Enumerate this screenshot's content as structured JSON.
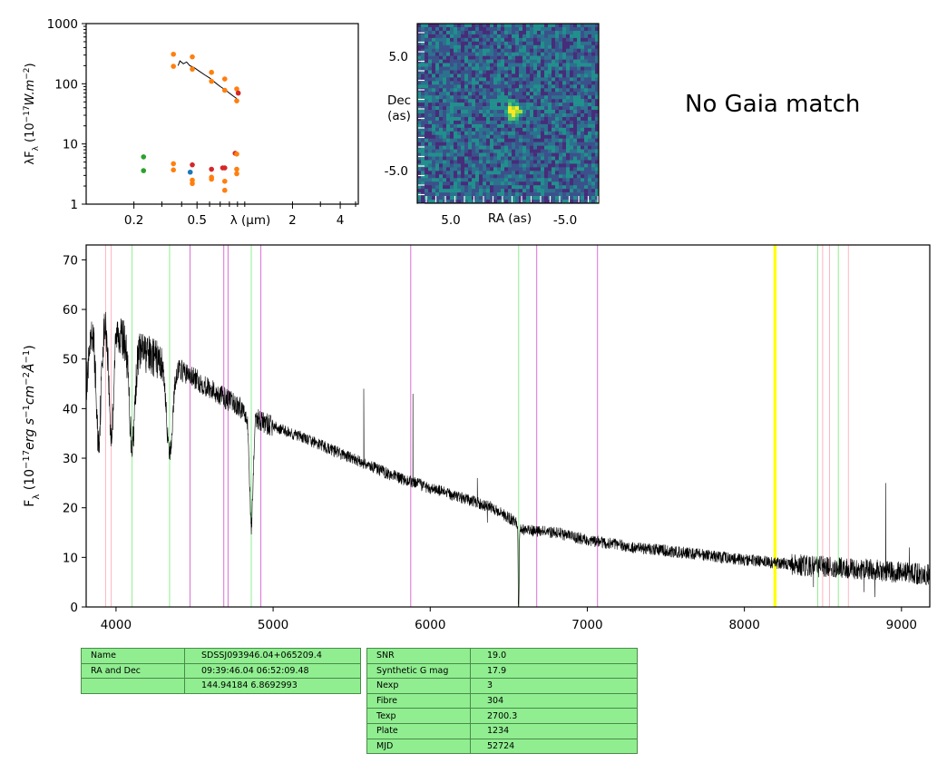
{
  "gaia_text": "No Gaia match",
  "colors": {
    "ink": "#000000",
    "sdss_orange": "#ff7f0e",
    "green": "#2ca02c",
    "red": "#d62728",
    "blue": "#1f77b4",
    "table_bg": "#90ee90"
  },
  "chart_data": [
    {
      "type": "scatter",
      "panel": "sed",
      "ylabel": "λF_λ (10^-17 W.m^-2)",
      "xlabel": "λ (μm)",
      "xscale": "log",
      "yscale": "log",
      "xlim": [
        0.1,
        5.2
      ],
      "ylim": [
        1,
        1000
      ],
      "xticks": [
        0.2,
        0.5,
        2,
        4
      ],
      "xtick_labels": [
        "0.2",
        "0.5",
        "2",
        "4"
      ],
      "yticks": [
        1,
        10,
        100,
        1000
      ],
      "ytick_labels": [
        "1",
        "10",
        "100",
        "1000"
      ],
      "points": [
        {
          "x": 0.23,
          "y": 6.1,
          "c": "green"
        },
        {
          "x": 0.23,
          "y": 3.6,
          "c": "green"
        },
        {
          "x": 0.355,
          "y": 310,
          "c": "orange"
        },
        {
          "x": 0.355,
          "y": 195,
          "c": "orange"
        },
        {
          "x": 0.355,
          "y": 4.7,
          "c": "orange"
        },
        {
          "x": 0.355,
          "y": 3.7,
          "c": "orange"
        },
        {
          "x": 0.467,
          "y": 280,
          "c": "orange"
        },
        {
          "x": 0.467,
          "y": 175,
          "c": "orange"
        },
        {
          "x": 0.453,
          "y": 3.4,
          "c": "blue"
        },
        {
          "x": 0.467,
          "y": 4.5,
          "c": "red"
        },
        {
          "x": 0.467,
          "y": 2.5,
          "c": "orange"
        },
        {
          "x": 0.467,
          "y": 2.2,
          "c": "orange"
        },
        {
          "x": 0.617,
          "y": 155,
          "c": "orange"
        },
        {
          "x": 0.617,
          "y": 110,
          "c": "orange"
        },
        {
          "x": 0.617,
          "y": 3.8,
          "c": "red"
        },
        {
          "x": 0.617,
          "y": 2.8,
          "c": "orange"
        },
        {
          "x": 0.617,
          "y": 2.6,
          "c": "orange"
        },
        {
          "x": 0.748,
          "y": 120,
          "c": "orange"
        },
        {
          "x": 0.748,
          "y": 78,
          "c": "orange"
        },
        {
          "x": 0.726,
          "y": 4.0,
          "c": "red"
        },
        {
          "x": 0.748,
          "y": 4.0,
          "c": "red"
        },
        {
          "x": 0.748,
          "y": 2.4,
          "c": "orange"
        },
        {
          "x": 0.748,
          "y": 1.7,
          "c": "orange"
        },
        {
          "x": 0.89,
          "y": 82,
          "c": "orange"
        },
        {
          "x": 0.89,
          "y": 52,
          "c": "orange"
        },
        {
          "x": 0.91,
          "y": 70,
          "c": "red"
        },
        {
          "x": 0.87,
          "y": 7.0,
          "c": "red"
        },
        {
          "x": 0.89,
          "y": 6.8,
          "c": "orange"
        },
        {
          "x": 0.89,
          "y": 3.8,
          "c": "orange"
        },
        {
          "x": 0.89,
          "y": 3.2,
          "c": "orange"
        }
      ],
      "spectrum_line": [
        [
          0.38,
          200
        ],
        [
          0.39,
          240
        ],
        [
          0.41,
          215
        ],
        [
          0.43,
          230
        ],
        [
          0.45,
          200
        ],
        [
          0.48,
          185
        ],
        [
          0.52,
          160
        ],
        [
          0.56,
          140
        ],
        [
          0.6,
          125
        ],
        [
          0.65,
          105
        ],
        [
          0.7,
          90
        ],
        [
          0.75,
          80
        ],
        [
          0.8,
          70
        ],
        [
          0.85,
          62
        ],
        [
          0.88,
          58
        ],
        [
          0.9,
          55
        ],
        [
          0.92,
          52
        ]
      ]
    },
    {
      "type": "heatmap",
      "panel": "cutout",
      "ylabel": "Dec\n(as)",
      "xlabel": "RA (as)",
      "xtick_labels": [
        "5.0",
        "-5.0"
      ],
      "ytick_labels": [
        "5.0",
        "-5.0"
      ],
      "source_center": [
        0.52,
        0.48
      ]
    },
    {
      "type": "line",
      "panel": "spectrum",
      "ylabel": "F_λ (10^-17 erg s^-1 cm^-2 Å^-1)",
      "xlim": [
        3810,
        9180
      ],
      "ylim": [
        0,
        73
      ],
      "xticks": [
        4000,
        5000,
        6000,
        7000,
        8000,
        9000
      ],
      "yticks": [
        0,
        10,
        20,
        30,
        40,
        50,
        60,
        70
      ],
      "vlines": [
        {
          "x": 3934,
          "color": "pink"
        },
        {
          "x": 3969,
          "color": "pink"
        },
        {
          "x": 4102,
          "color": "lightgreen"
        },
        {
          "x": 4341,
          "color": "lightgreen"
        },
        {
          "x": 4471,
          "color": "orchid"
        },
        {
          "x": 4686,
          "color": "orchid"
        },
        {
          "x": 4713,
          "color": "orchid"
        },
        {
          "x": 4861,
          "color": "lightgreen"
        },
        {
          "x": 4922,
          "color": "orchid"
        },
        {
          "x": 5876,
          "color": "orchid"
        },
        {
          "x": 6563,
          "color": "lightgreen"
        },
        {
          "x": 6678,
          "color": "orchid"
        },
        {
          "x": 7065,
          "color": "orchid"
        },
        {
          "x": 8190,
          "color": "yellow"
        },
        {
          "x": 8200,
          "color": "yellow"
        },
        {
          "x": 8498,
          "color": "pink"
        },
        {
          "x": 8542,
          "color": "pink"
        },
        {
          "x": 8662,
          "color": "pink"
        },
        {
          "x": 8467,
          "color": "lightgreen"
        },
        {
          "x": 8598,
          "color": "lightgreen"
        }
      ],
      "continuum": [
        [
          3810,
          44
        ],
        [
          3850,
          56
        ],
        [
          3900,
          58
        ],
        [
          3950,
          57
        ],
        [
          4000,
          56
        ],
        [
          4050,
          54
        ],
        [
          4150,
          52
        ],
        [
          4250,
          50
        ],
        [
          4400,
          48
        ],
        [
          4500,
          46
        ],
        [
          4600,
          44
        ],
        [
          4800,
          40
        ],
        [
          4950,
          37
        ],
        [
          5200,
          34
        ],
        [
          5500,
          30
        ],
        [
          5800,
          26
        ],
        [
          6100,
          23
        ],
        [
          6400,
          20
        ],
        [
          6550,
          17
        ],
        [
          6600,
          15.5
        ],
        [
          6800,
          15
        ],
        [
          7000,
          13.5
        ],
        [
          7300,
          12
        ],
        [
          7600,
          11
        ],
        [
          8000,
          9.5
        ],
        [
          8400,
          8.3
        ],
        [
          8800,
          7.5
        ],
        [
          9180,
          6.5
        ]
      ],
      "absorptions": [
        [
          3889,
          24,
          22
        ],
        [
          3970,
          22,
          20
        ],
        [
          4102,
          20,
          25
        ],
        [
          4341,
          18,
          27
        ],
        [
          4861,
          22,
          16
        ],
        [
          6563,
          20,
          4
        ],
        [
          5577,
          2,
          0
        ]
      ],
      "spikes": [
        [
          5577,
          44
        ],
        [
          5890,
          43
        ],
        [
          6300,
          26
        ],
        [
          6364,
          17
        ],
        [
          8900,
          25
        ],
        [
          8830,
          2
        ],
        [
          8760,
          3
        ],
        [
          8440,
          4
        ],
        [
          9050,
          12
        ]
      ]
    }
  ],
  "tables": {
    "name": [
      {
        "k": "Name",
        "v": "SDSSJ093946.04+065209.4"
      },
      {
        "k": "RA and Dec",
        "v": "09:39:46.04    06:52:09.48"
      },
      {
        "k": "",
        "v": "144.94184    6.8692993"
      }
    ],
    "stats": [
      {
        "k": "SNR",
        "v": "19.0"
      },
      {
        "k": "Synthetic G mag",
        "v": "17.9"
      },
      {
        "k": "Nexp",
        "v": "3"
      },
      {
        "k": "Fibre",
        "v": "304"
      },
      {
        "k": "Texp",
        "v": "2700.3"
      },
      {
        "k": "Plate",
        "v": "1234"
      },
      {
        "k": "MJD",
        "v": "52724"
      }
    ]
  }
}
